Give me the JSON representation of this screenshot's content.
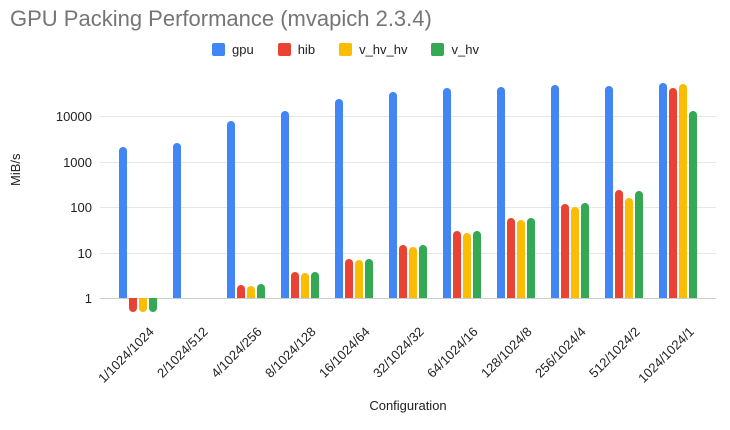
{
  "title": "GPU Packing Performance (mvapich 2.3.4)",
  "chart_data": {
    "type": "bar",
    "title": "GPU Packing Performance (mvapich 2.3.4)",
    "xlabel": "Configuration",
    "ylabel": "MiB/s",
    "y_scale": "log",
    "grid": true,
    "legend_position": "top",
    "y_ticks": [
      1,
      10,
      100,
      1000,
      10000
    ],
    "ylim": [
      0.45,
      78000
    ],
    "categories": [
      "1/1024/1024",
      "2/1024/512",
      "4/1024/256",
      "8/1024/128",
      "16/1024/64",
      "32/1024/32",
      "64/1024/16",
      "128/1024/8",
      "256/1024/4",
      "512/1024/2",
      "1024/1024/1"
    ],
    "series": [
      {
        "name": "gpu",
        "color": "#4285F4",
        "values": [
          2100,
          2600,
          7800,
          12700,
          24000,
          34500,
          41000,
          43000,
          47000,
          45000,
          54000
        ]
      },
      {
        "name": "hib",
        "color": "#EA4335",
        "values": [
          0.5,
          null,
          1.9,
          3.8,
          7.3,
          14.5,
          30,
          57,
          118,
          240,
          42000
        ]
      },
      {
        "name": "v_hv_hv",
        "color": "#FBBC04",
        "values": [
          0.5,
          null,
          1.8,
          3.6,
          7.0,
          13.5,
          26.5,
          52,
          100,
          160,
          51000
        ]
      },
      {
        "name": "v_hv",
        "color": "#34A853",
        "values": [
          0.5,
          null,
          2.0,
          3.8,
          7.3,
          14.5,
          29,
          57,
          125,
          220,
          13000
        ]
      }
    ]
  }
}
